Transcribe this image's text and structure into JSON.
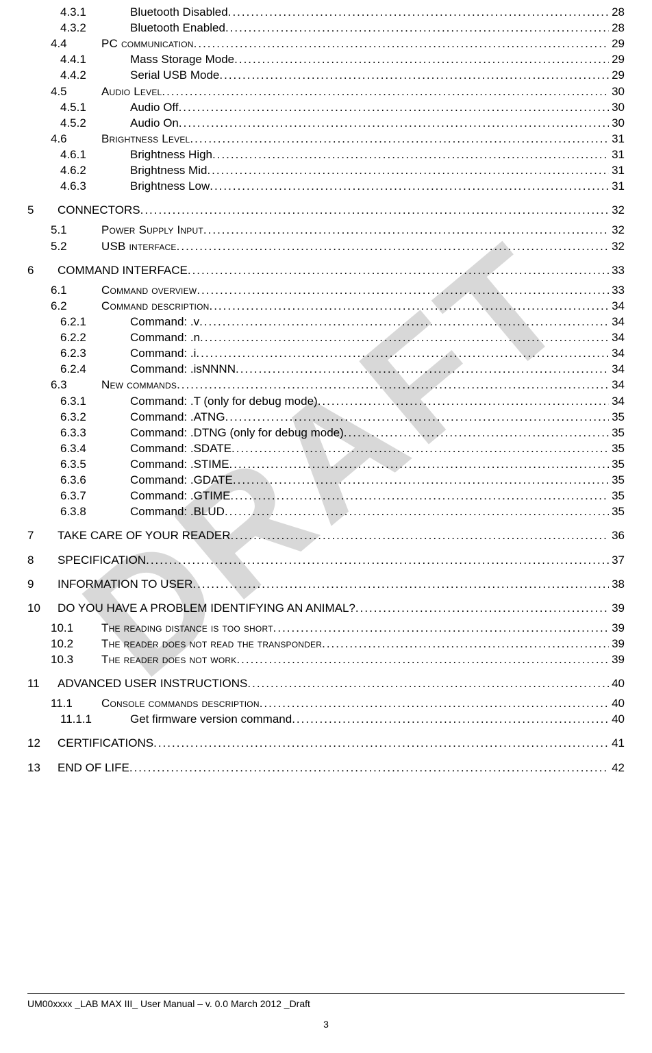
{
  "watermark": "DRAFT",
  "footer": {
    "text": "UM00xxxx _LAB MAX III_ User Manual – v. 0.0 March 2012 _Draft",
    "page_number": "3"
  },
  "toc": [
    {
      "level": 3,
      "num": "4.3.1",
      "label": "Bluetooth Disabled",
      "page": "28"
    },
    {
      "level": 3,
      "num": "4.3.2",
      "label": "Bluetooth Enabled",
      "page": "28"
    },
    {
      "level": 2,
      "num": "4.4",
      "label": "PC communication",
      "page": "29",
      "smallcaps": true
    },
    {
      "level": 3,
      "num": "4.4.1",
      "label": "Mass Storage Mode",
      "page": "29"
    },
    {
      "level": 3,
      "num": "4.4.2",
      "label": "Serial USB Mode",
      "page": "29"
    },
    {
      "level": 2,
      "num": "4.5",
      "label": "Audio Level",
      "page": "30",
      "smallcaps": true
    },
    {
      "level": 3,
      "num": "4.5.1",
      "label": "Audio Off",
      "page": "30"
    },
    {
      "level": 3,
      "num": "4.5.2",
      "label": "Audio On",
      "page": "30"
    },
    {
      "level": 2,
      "num": "4.6",
      "label": "Brightness Level",
      "page": "31",
      "smallcaps": true
    },
    {
      "level": 3,
      "num": "4.6.1",
      "label": "Brightness High",
      "page": "31"
    },
    {
      "level": 3,
      "num": "4.6.2",
      "label": "Brightness Mid",
      "page": "31"
    },
    {
      "level": 3,
      "num": "4.6.3",
      "label": "Brightness Low",
      "page": "31"
    },
    {
      "level": 1,
      "num": "5",
      "label": "CONNECTORS",
      "page": "32"
    },
    {
      "level": 2,
      "num": "5.1",
      "label": "Power Supply Input",
      "page": "32",
      "smallcaps": true,
      "gap": true
    },
    {
      "level": 2,
      "num": "5.2",
      "label": "USB interface",
      "page": "32",
      "smallcaps": true
    },
    {
      "level": 1,
      "num": "6",
      "label": "COMMAND INTERFACE",
      "page": "33"
    },
    {
      "level": 2,
      "num": "6.1",
      "label": "Command overview",
      "page": "33",
      "smallcaps": true,
      "gap": true
    },
    {
      "level": 2,
      "num": "6.2",
      "label": "Command description",
      "page": "34",
      "smallcaps": true
    },
    {
      "level": 3,
      "num": "6.2.1",
      "label": "Command: .v",
      "page": "34"
    },
    {
      "level": 3,
      "num": "6.2.2",
      "label": "Command: .n",
      "page": "34"
    },
    {
      "level": 3,
      "num": "6.2.3",
      "label": "Command: .i",
      "page": "34"
    },
    {
      "level": 3,
      "num": "6.2.4",
      "label": "Command: .isNNNN",
      "page": "34"
    },
    {
      "level": 2,
      "num": "6.3",
      "label": "New commands",
      "page": "34",
      "smallcaps": true
    },
    {
      "level": 3,
      "num": "6.3.1",
      "label": "Command: .T (only for debug mode)",
      "page": "34"
    },
    {
      "level": 3,
      "num": "6.3.2",
      "label": "Command: .ATNG",
      "page": "35"
    },
    {
      "level": 3,
      "num": "6.3.3",
      "label": "Command: .DTNG (only for debug mode)",
      "page": "35"
    },
    {
      "level": 3,
      "num": "6.3.4",
      "label": "Command: .SDATE",
      "page": "35"
    },
    {
      "level": 3,
      "num": "6.3.5",
      "label": "Command: .STIME",
      "page": "35"
    },
    {
      "level": 3,
      "num": "6.3.6",
      "label": "Command: .GDATE",
      "page": "35"
    },
    {
      "level": 3,
      "num": "6.3.7",
      "label": "Command: .GTIME",
      "page": "35"
    },
    {
      "level": 3,
      "num": "6.3.8",
      "label": "Command: .BLUD",
      "page": "35"
    },
    {
      "level": 1,
      "num": "7",
      "label": "TAKE CARE OF YOUR READER",
      "page": "36"
    },
    {
      "level": 1,
      "num": "8",
      "label": "SPECIFICATION",
      "page": "37"
    },
    {
      "level": 1,
      "num": "9",
      "label": "INFORMATION TO USER",
      "page": "38"
    },
    {
      "level": 1,
      "num": "10",
      "label": "DO YOU HAVE A PROBLEM IDENTIFYING AN ANIMAL?",
      "page": "39"
    },
    {
      "level": 2,
      "num": "10.1",
      "label": "The reading distance is too short",
      "page": "39",
      "smallcaps": true,
      "gap": true
    },
    {
      "level": 2,
      "num": "10.2",
      "label": "The reader does not read the transponder",
      "page": "39",
      "smallcaps": true
    },
    {
      "level": 2,
      "num": "10.3",
      "label": "The reader does not work",
      "page": "39",
      "smallcaps": true
    },
    {
      "level": 1,
      "num": "11",
      "label": "ADVANCED USER INSTRUCTIONS",
      "page": "40"
    },
    {
      "level": 2,
      "num": "11.1",
      "label": "Console commands description",
      "page": "40",
      "smallcaps": true,
      "gap": true
    },
    {
      "level": 3,
      "num": "11.1.1",
      "label": "Get firmware version command",
      "page": "40"
    },
    {
      "level": 1,
      "num": "12",
      "label": "CERTIFICATIONS",
      "page": "41"
    },
    {
      "level": 1,
      "num": "13",
      "label": "END OF LIFE",
      "page": "42"
    }
  ]
}
